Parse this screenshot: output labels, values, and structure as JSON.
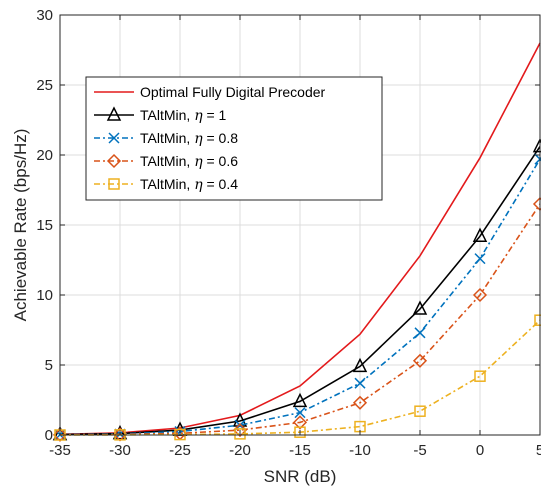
{
  "chart_data": {
    "type": "line",
    "xlabel": "SNR (dB)",
    "ylabel": "Achievable Rate (bps/Hz)",
    "xlim": [
      -35,
      5
    ],
    "ylim": [
      0,
      30
    ],
    "xticks": [
      "-35",
      "-30",
      "-25",
      "-20",
      "-15",
      "-10",
      "-5",
      "0",
      "5"
    ],
    "yticks": [
      "0",
      "5",
      "10",
      "15",
      "20",
      "25",
      "30"
    ],
    "grid": true,
    "legend_position": "upper-left",
    "x": [
      -35,
      -30,
      -25,
      -20,
      -15,
      -10,
      -5,
      0,
      5
    ],
    "series": [
      {
        "name": "Optimal Fully Digital Precoder",
        "legend_main": "Optimal Fully Digital Precoder",
        "legend_sub": "",
        "color": "#e31a1c",
        "dash": "solid",
        "marker": "none",
        "values": [
          0.05,
          0.15,
          0.5,
          1.4,
          3.5,
          7.2,
          12.8,
          19.8,
          28.0
        ]
      },
      {
        "name": "TAltMin, η = 1",
        "legend_main": "TAltMin, ",
        "legend_sub": " = 1",
        "color": "#000000",
        "dash": "solid",
        "marker": "triangle",
        "values": [
          0.03,
          0.1,
          0.35,
          1.0,
          2.4,
          4.9,
          9.0,
          14.2,
          20.6
        ]
      },
      {
        "name": "TAltMin, η = 0.8",
        "legend_main": "TAltMin, ",
        "legend_sub": " = 0.8",
        "color": "#0072bd",
        "dash": "dashdot",
        "marker": "x",
        "values": [
          0.02,
          0.07,
          0.25,
          0.7,
          1.6,
          3.7,
          7.3,
          12.6,
          19.7
        ]
      },
      {
        "name": "TAltMin, η = 0.6",
        "legend_main": "TAltMin, ",
        "legend_sub": " = 0.6",
        "color": "#d95319",
        "dash": "dashdot",
        "marker": "diamond",
        "values": [
          0.01,
          0.04,
          0.12,
          0.35,
          0.9,
          2.3,
          5.3,
          10.0,
          16.5
        ]
      },
      {
        "name": "TAltMin, η = 0.4",
        "legend_main": "TAltMin, ",
        "legend_sub": " = 0.4",
        "color": "#edb120",
        "dash": "dashdot",
        "marker": "square",
        "values": [
          0.0,
          0.01,
          0.03,
          0.08,
          0.2,
          0.6,
          1.7,
          4.2,
          8.2
        ]
      }
    ],
    "legend_symbol": "η"
  }
}
